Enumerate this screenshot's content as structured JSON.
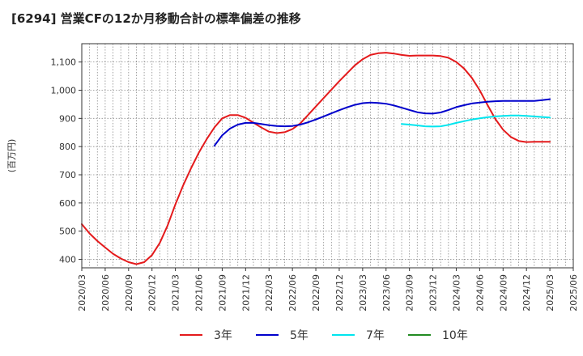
{
  "chart_data": {
    "type": "line",
    "title": "[6294]  営業CFの12か月移動合計の標準偏差の推移",
    "ylabel": "(百万円)",
    "xlabel": "",
    "ylim": [
      370,
      1165
    ],
    "yticks": [
      400,
      500,
      600,
      700,
      800,
      900,
      1000,
      1100
    ],
    "ytick_labels": [
      "400",
      "500",
      "600",
      "700",
      "800",
      "900",
      "1,000",
      "1,100"
    ],
    "xticks": [
      "2020/03",
      "2020/06",
      "2020/09",
      "2020/12",
      "2021/03",
      "2021/06",
      "2021/09",
      "2021/12",
      "2022/03",
      "2022/06",
      "2022/09",
      "2022/12",
      "2023/03",
      "2023/06",
      "2023/09",
      "2023/12",
      "2024/03",
      "2024/06",
      "2024/09",
      "2024/12",
      "2025/03",
      "2025/06"
    ],
    "grid": true,
    "legend_position": "bottom",
    "series": [
      {
        "name": "3年",
        "color": "#e41a1c",
        "x": [
          "2020/03",
          "2020/04",
          "2020/05",
          "2020/06",
          "2020/07",
          "2020/08",
          "2020/09",
          "2020/10",
          "2020/11",
          "2020/12",
          "2021/01",
          "2021/02",
          "2021/03",
          "2021/04",
          "2021/05",
          "2021/06",
          "2021/07",
          "2021/08",
          "2021/09",
          "2021/10",
          "2021/11",
          "2021/12",
          "2022/01",
          "2022/02",
          "2022/03",
          "2022/04",
          "2022/05",
          "2022/06",
          "2022/07",
          "2022/08",
          "2022/09",
          "2022/10",
          "2022/11",
          "2022/12",
          "2023/01",
          "2023/02",
          "2023/03",
          "2023/04",
          "2023/05",
          "2023/06",
          "2023/07",
          "2023/08",
          "2023/09",
          "2023/10",
          "2023/11",
          "2023/12",
          "2024/01",
          "2024/02",
          "2024/03",
          "2024/04",
          "2024/05",
          "2024/06",
          "2024/07",
          "2024/08",
          "2024/09",
          "2024/10",
          "2024/11",
          "2024/12",
          "2025/01",
          "2025/02",
          "2025/03"
        ],
        "values": [
          525,
          492,
          465,
          442,
          420,
          403,
          390,
          383,
          390,
          415,
          458,
          520,
          595,
          663,
          723,
          778,
          826,
          868,
          900,
          912,
          912,
          902,
          885,
          868,
          853,
          848,
          851,
          862,
          882,
          912,
          942,
          972,
          1002,
          1032,
          1060,
          1088,
          1110,
          1125,
          1131,
          1133,
          1130,
          1125,
          1122,
          1123,
          1123,
          1123,
          1121,
          1115,
          1100,
          1077,
          1044,
          1000,
          948,
          898,
          860,
          834,
          820,
          816,
          817,
          817,
          817
        ]
      },
      {
        "name": "5年",
        "color": "#0000cc",
        "x": [
          "2021/08",
          "2021/09",
          "2021/10",
          "2021/11",
          "2021/12",
          "2022/01",
          "2022/02",
          "2022/03",
          "2022/04",
          "2022/05",
          "2022/06",
          "2022/07",
          "2022/08",
          "2022/09",
          "2022/10",
          "2022/11",
          "2022/12",
          "2023/01",
          "2023/02",
          "2023/03",
          "2023/04",
          "2023/05",
          "2023/06",
          "2023/07",
          "2023/08",
          "2023/09",
          "2023/10",
          "2023/11",
          "2023/12",
          "2024/01",
          "2024/02",
          "2024/03",
          "2024/04",
          "2024/05",
          "2024/06",
          "2024/07",
          "2024/08",
          "2024/09",
          "2024/10",
          "2024/11",
          "2024/12",
          "2025/01",
          "2025/02",
          "2025/03"
        ],
        "values": [
          803,
          840,
          864,
          878,
          884,
          884,
          880,
          876,
          873,
          872,
          873,
          878,
          886,
          896,
          907,
          918,
          929,
          939,
          948,
          954,
          956,
          955,
          952,
          946,
          938,
          930,
          922,
          918,
          917,
          921,
          930,
          940,
          947,
          953,
          956,
          959,
          961,
          962,
          962,
          962,
          962,
          962,
          965,
          968
        ]
      },
      {
        "name": "7年",
        "color": "#00e5ee",
        "x": [
          "2023/08",
          "2023/09",
          "2023/10",
          "2023/11",
          "2023/12",
          "2024/01",
          "2024/02",
          "2024/03",
          "2024/04",
          "2024/05",
          "2024/06",
          "2024/07",
          "2024/08",
          "2024/09",
          "2024/10",
          "2024/11",
          "2024/12",
          "2025/01",
          "2025/02",
          "2025/03"
        ],
        "values": [
          880,
          878,
          875,
          872,
          871,
          872,
          877,
          884,
          890,
          896,
          900,
          904,
          907,
          909,
          910,
          910,
          909,
          907,
          905,
          903
        ]
      },
      {
        "name": "10年",
        "color": "#228b22",
        "x": [],
        "values": []
      }
    ]
  }
}
